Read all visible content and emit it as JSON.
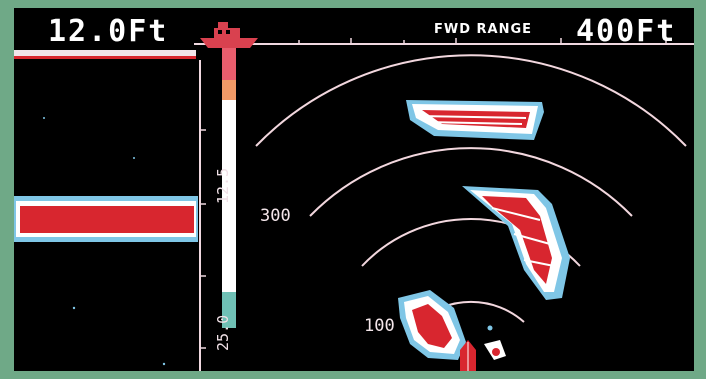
{
  "header": {
    "depth": "12.0Ft",
    "fwd_range_label": "FWD RANGE",
    "range": "400Ft"
  },
  "color_scale": {
    "mid_label": "12.5",
    "bottom_label": "25.0"
  },
  "range_rings": {
    "label_300": "300",
    "label_100": "100"
  },
  "colors": {
    "bezel": "#6fa987",
    "screen": "#000000",
    "echo_strong": "#d8262f",
    "echo_medium": "#ffffff",
    "echo_weak": "#7fc6e6",
    "ring": "#f2d7de"
  },
  "icons": {
    "boat": "boat-icon",
    "transducer": "transducer-icon"
  }
}
